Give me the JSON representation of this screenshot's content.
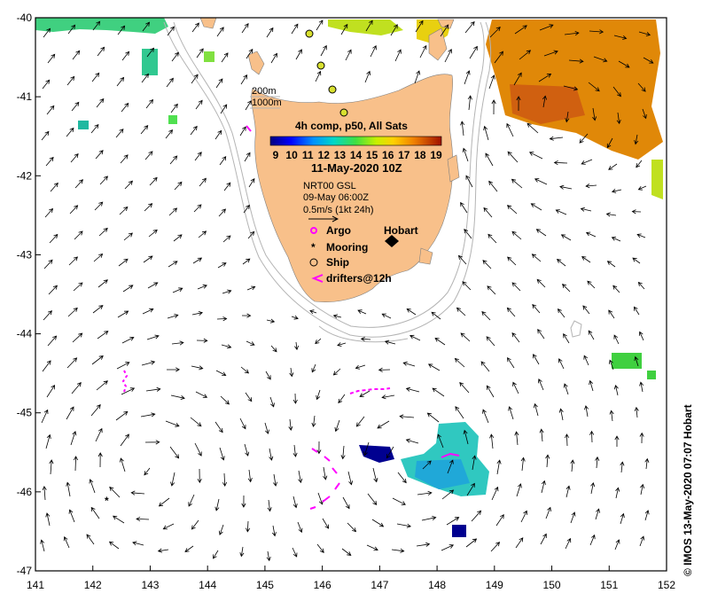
{
  "map": {
    "lon_ticks": [
      "141",
      "142",
      "143",
      "144",
      "145",
      "146",
      "147",
      "148",
      "149",
      "150",
      "151",
      "152"
    ],
    "lat_ticks": [
      "-40",
      "-41",
      "-42",
      "-43",
      "-44",
      "-45",
      "-46",
      "-47"
    ],
    "lon_range": [
      141,
      152
    ],
    "lat_range": [
      -47,
      -40
    ],
    "land_color": "#f8c08a",
    "bathy_labels": [
      "200m",
      "1000m"
    ]
  },
  "legend": {
    "title": "4h comp, p50, All Sats",
    "colorbar_ticks": [
      "9",
      "10",
      "11",
      "12",
      "13",
      "14",
      "15",
      "16",
      "17",
      "18",
      "19"
    ],
    "colorbar_range": [
      9,
      19
    ],
    "date": "11-May-2020 10Z",
    "current_source": "NRT00 GSL",
    "current_date": "09-May 06:00Z",
    "scale_note": "0.5m/s (1kt 24h)",
    "symbols": [
      {
        "label": "Argo",
        "symbol": "magenta-circle-icon"
      },
      {
        "label": "Mooring",
        "symbol": "star-icon"
      },
      {
        "label": "Ship",
        "symbol": "circle-icon"
      },
      {
        "label": "drifters@12h",
        "symbol": "magenta-arrow-icon"
      }
    ],
    "city": "Hobart"
  },
  "credit": "© IMOS 13-May-2020 07:07 Hobart",
  "colors": {
    "argo": "#ff00ff",
    "drifter": "#ff00ff",
    "sst_warm": "#e07800",
    "sst_mid": "#30c8c0",
    "sst_cold": "#000080"
  }
}
